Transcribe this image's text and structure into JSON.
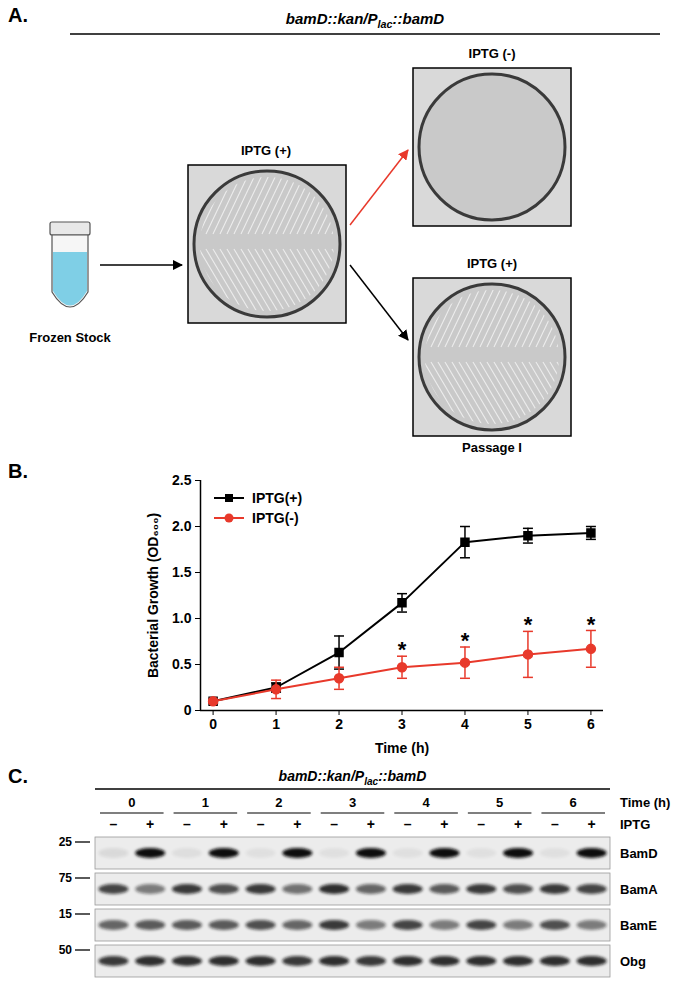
{
  "panel_A": {
    "panel_label": "A.",
    "title": [
      "bamD::kan/P",
      "lac",
      "::bamD"
    ],
    "source": "Frozen Stock",
    "plates": [
      {
        "label": "IPTG (+)",
        "growth": true
      },
      {
        "label": "IPTG (-)",
        "growth": false
      },
      {
        "label": "IPTG (+)",
        "growth": true,
        "caption": "Passage I"
      }
    ]
  },
  "chart_data": {
    "panel_label": "B.",
    "type": "line",
    "xlabel": "Time (h)",
    "ylabel": "Bacterial Growth (OD₆₀₀)",
    "x": [
      0,
      1,
      2,
      3,
      4,
      5,
      6
    ],
    "xlim": [
      -0.2,
      6.2
    ],
    "xticks": [
      0,
      1,
      2,
      3,
      4,
      5,
      6
    ],
    "ylim": [
      0,
      2.5
    ],
    "yticks": [
      0,
      0.5,
      {
        "value": 1,
        "label": "1.0"
      },
      1.5,
      {
        "value": 2,
        "label": "2.0"
      },
      2.5
    ],
    "legend": "top-left",
    "series": [
      {
        "name": "IPTG(+)",
        "color": "#000000",
        "marker": "square",
        "line_style": "solid",
        "values": [
          0.1,
          0.25,
          0.63,
          1.17,
          1.83,
          1.9,
          1.93
        ],
        "errors": [
          0.02,
          0.05,
          0.18,
          0.1,
          0.17,
          0.08,
          0.07
        ]
      },
      {
        "name": "IPTG(-)",
        "color": "#e8392b",
        "marker": "circle",
        "line_style": "solid",
        "values": [
          0.1,
          0.23,
          0.35,
          0.47,
          0.52,
          0.61,
          0.67
        ],
        "errors": [
          0.02,
          0.1,
          0.12,
          0.12,
          0.17,
          0.25,
          0.2
        ]
      }
    ],
    "annotations": [
      {
        "text": "*",
        "x": 3,
        "series": "IPTG(-)"
      },
      {
        "text": "*",
        "x": 4,
        "series": "IPTG(-)"
      },
      {
        "text": "*",
        "x": 5,
        "series": "IPTG(-)"
      },
      {
        "text": "*",
        "x": 6,
        "series": "IPTG(-)"
      }
    ]
  },
  "panel_C": {
    "panel_label": "C.",
    "title": [
      "bamD::kan/P",
      "lac",
      "::bamD"
    ],
    "times": [
      0,
      1,
      2,
      3,
      4,
      5,
      6
    ],
    "time_label": "Time (h)",
    "treatments": [
      "–",
      "+"
    ],
    "treatment_label": "IPTG",
    "rows": [
      {
        "name": "BamD",
        "mw": 25,
        "bands": [
          0.08,
          1,
          0.06,
          1,
          0.05,
          1,
          0.05,
          1,
          0.05,
          1,
          0.05,
          1,
          0.05,
          1
        ]
      },
      {
        "name": "BamA",
        "mw": 75,
        "bands": [
          0.75,
          0.5,
          0.8,
          0.7,
          0.8,
          0.55,
          0.85,
          0.6,
          0.8,
          0.65,
          0.8,
          0.7,
          0.8,
          0.75
        ]
      },
      {
        "name": "BamE",
        "mw": 15,
        "bands": [
          0.6,
          0.65,
          0.65,
          0.65,
          0.7,
          0.6,
          0.8,
          0.5,
          0.75,
          0.5,
          0.75,
          0.5,
          0.7,
          0.5
        ]
      },
      {
        "name": "Obg",
        "mw": 50,
        "bands": [
          0.8,
          0.85,
          0.85,
          0.85,
          0.85,
          0.8,
          0.85,
          0.8,
          0.85,
          0.85,
          0.85,
          0.85,
          0.85,
          0.85
        ]
      }
    ]
  }
}
